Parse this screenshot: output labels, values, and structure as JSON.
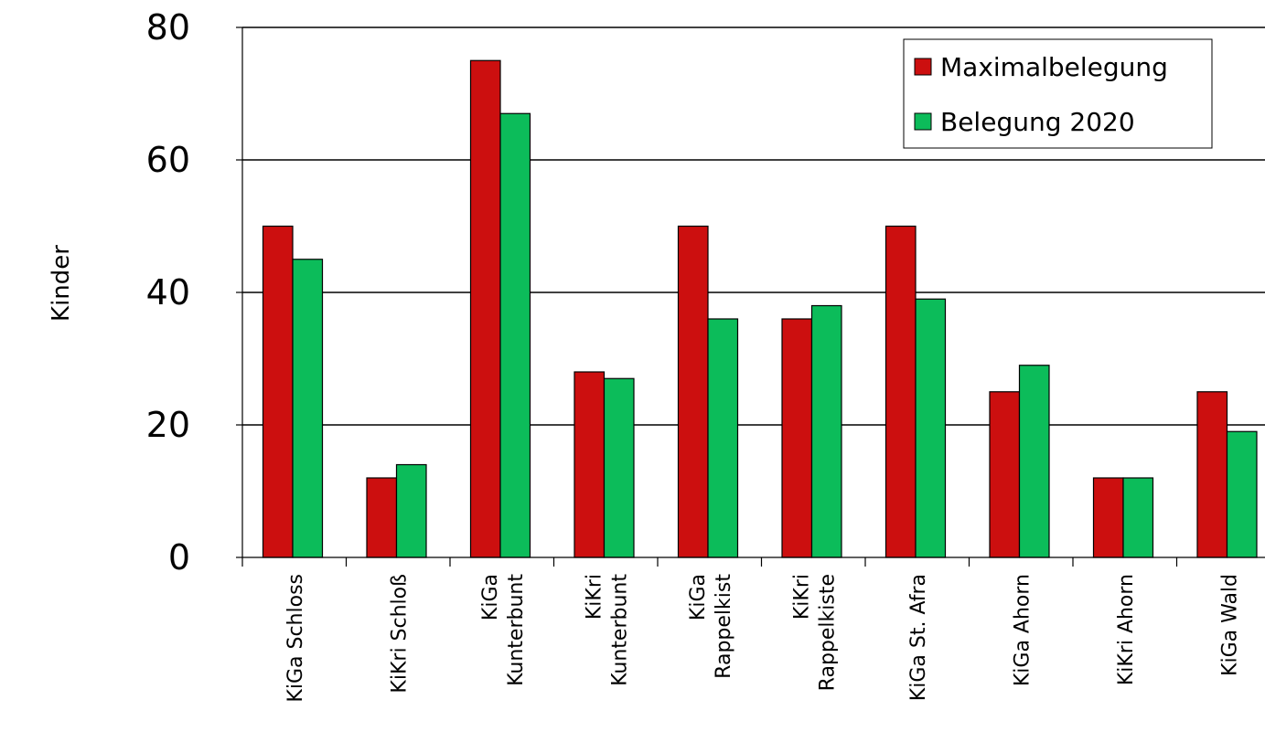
{
  "chart_data": {
    "type": "bar",
    "title": "",
    "xlabel": "",
    "ylabel": "Kinder",
    "ylim": [
      0,
      80
    ],
    "yticks": [
      0,
      20,
      40,
      60,
      80
    ],
    "grid": "horizontal",
    "legend_position": "top-right",
    "categories": [
      [
        "KiGa Schloss"
      ],
      [
        "KiKri Schloß"
      ],
      [
        "KiGa",
        "Kunterbunt"
      ],
      [
        "KiKri",
        "Kunterbunt"
      ],
      [
        "KiGa",
        "Rappelkist"
      ],
      [
        "KiKri",
        "Rappelkiste"
      ],
      [
        "KiGa St. Afra"
      ],
      [
        "KiGa Ahorn"
      ],
      [
        "KiKri Ahorn"
      ],
      [
        "KiGa Wald"
      ]
    ],
    "series": [
      {
        "name": "Maximalbelegung",
        "color": "#cc0f0f",
        "values": [
          50,
          12,
          75,
          28,
          50,
          36,
          50,
          25,
          12,
          25
        ]
      },
      {
        "name": "Belegung 2020",
        "color": "#0cbc5a",
        "values": [
          45,
          14,
          67,
          27,
          36,
          38,
          39,
          29,
          12,
          19
        ]
      }
    ]
  }
}
